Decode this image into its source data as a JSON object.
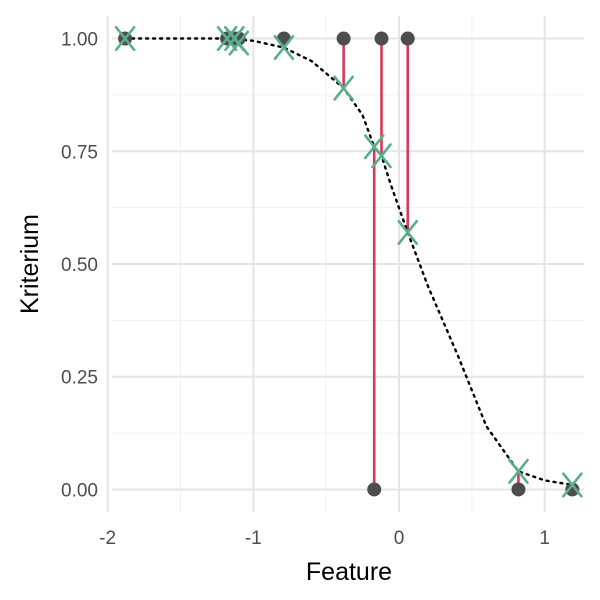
{
  "chart_data": {
    "type": "scatter",
    "xlabel": "Feature",
    "ylabel": "Kriterium",
    "xlim": [
      -1.97,
      1.27
    ],
    "ylim": [
      -0.05,
      1.05
    ],
    "x_ticks": [
      -2,
      -1,
      0,
      1
    ],
    "x_tick_labels": [
      "-2",
      "-1",
      "0",
      "1"
    ],
    "y_ticks": [
      0,
      0.25,
      0.5,
      0.75,
      1
    ],
    "y_tick_labels": [
      "0.00",
      "0.25",
      "0.50",
      "0.75",
      "1.00"
    ],
    "grid": true,
    "observed": {
      "x": [
        -1.88,
        -1.18,
        -1.13,
        -1.1,
        -0.79,
        -0.38,
        -0.17,
        -0.12,
        0.06,
        0.82,
        1.19
      ],
      "y": [
        1,
        1,
        1,
        1,
        1,
        1,
        0,
        1,
        1,
        0,
        0
      ]
    },
    "predicted": {
      "x": [
        -1.88,
        -1.18,
        -1.13,
        -1.1,
        -0.79,
        -0.38,
        -0.17,
        -0.12,
        0.06,
        0.82,
        1.19
      ],
      "y": [
        1.0,
        1.0,
        1.0,
        0.99,
        0.98,
        0.89,
        0.76,
        0.74,
        0.57,
        0.04,
        0.01
      ]
    },
    "curve": {
      "x": [
        -1.88,
        -1.5,
        -1.18,
        -1.0,
        -0.79,
        -0.6,
        -0.38,
        -0.25,
        -0.17,
        -0.12,
        -0.05,
        0.06,
        0.2,
        0.4,
        0.6,
        0.82,
        1.0,
        1.19
      ],
      "y": [
        1.0,
        1.0,
        1.0,
        0.995,
        0.98,
        0.95,
        0.89,
        0.83,
        0.76,
        0.74,
        0.67,
        0.57,
        0.45,
        0.3,
        0.14,
        0.04,
        0.02,
        0.01
      ]
    },
    "colors": {
      "point": "#4d4d4d",
      "prediction_marker": "#5aae8a",
      "residual_line": "#d6395c",
      "curve": "#000000",
      "grid_major": "#e5e5e5",
      "grid_minor": "#f0f0f0"
    }
  }
}
